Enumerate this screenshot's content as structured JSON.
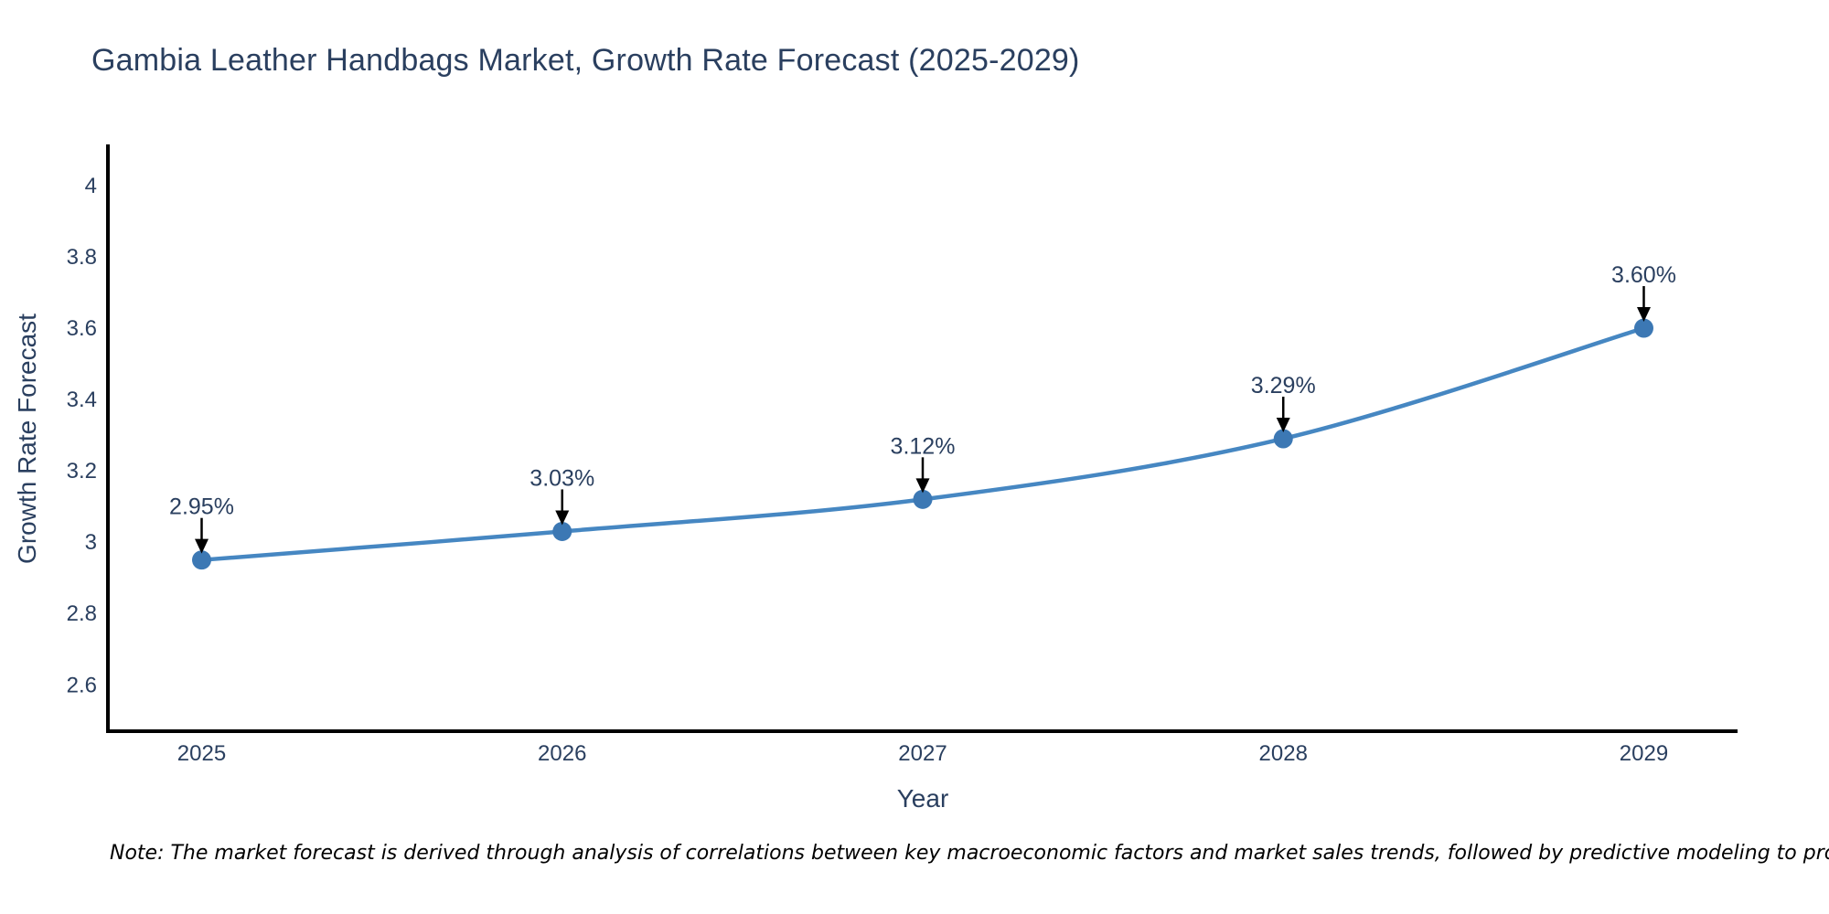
{
  "page": {
    "note": "Note: The market forecast is derived through analysis of correlations between key macroeconomic factors and market sales trends, followed by predictive modeling to project future sales"
  },
  "colors": {
    "title_text": "#2a3f5f",
    "axis_text": "#2a3f5f",
    "line": "#4687c2",
    "marker": "#3c78b4",
    "axis_line": "#000000",
    "arrow": "#000000",
    "note_text": "#000000",
    "background": "#ffffff"
  },
  "chart_data": {
    "type": "line",
    "title": "Gambia Leather Handbags Market, Growth Rate Forecast (2025-2029)",
    "x": [
      2025,
      2026,
      2027,
      2028,
      2029
    ],
    "series": [
      {
        "name": "Growth Rate Forecast",
        "values": [
          2.95,
          3.03,
          3.12,
          3.29,
          3.6
        ]
      }
    ],
    "point_labels": [
      "2.95%",
      "3.03%",
      "3.12%",
      "3.29%",
      "3.60%"
    ],
    "xlabel": "Year",
    "ylabel": "Growth Rate Forecast",
    "xticks": [
      "2025",
      "2026",
      "2027",
      "2028",
      "2029"
    ],
    "yticks": [
      2.6,
      2.8,
      3,
      3.2,
      3.4,
      3.6,
      3.8,
      4
    ],
    "xlim": [
      2024.74,
      2029.26
    ],
    "ylim": [
      2.47,
      4.11
    ],
    "grid": false,
    "legend": false,
    "line_shape": "spline",
    "marker_size": 21
  }
}
